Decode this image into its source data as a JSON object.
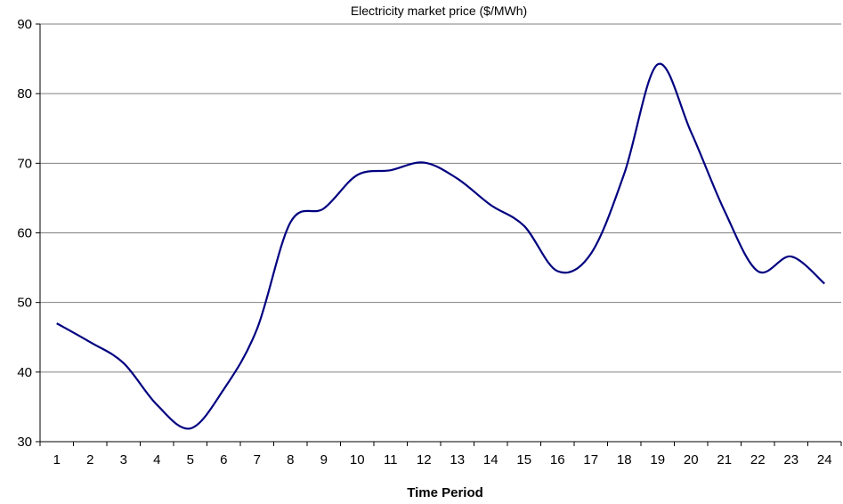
{
  "chart_data": {
    "type": "line",
    "title": "Electricity market price ($/MWh)",
    "xlabel": "Time Period",
    "ylabel": "",
    "categories": [
      "1",
      "2",
      "3",
      "4",
      "5",
      "6",
      "7",
      "8",
      "9",
      "10",
      "11",
      "12",
      "13",
      "14",
      "15",
      "16",
      "17",
      "18",
      "19",
      "20",
      "21",
      "22",
      "23",
      "24"
    ],
    "series": [
      {
        "values": [
          47,
          44.3,
          41.3,
          35.3,
          31.9,
          37.5,
          46.2,
          61.5,
          63.5,
          68.3,
          69,
          70.1,
          67.8,
          64,
          61,
          54.5,
          57,
          68.5,
          84.2,
          74.5,
          63.2,
          54.5,
          56.6,
          52.7
        ]
      }
    ],
    "ylim": [
      30,
      90
    ],
    "yticks": [
      30,
      40,
      50,
      60,
      70,
      80,
      90
    ],
    "grid": true,
    "smooth": true,
    "line_color": "#000080",
    "legend": "none"
  }
}
